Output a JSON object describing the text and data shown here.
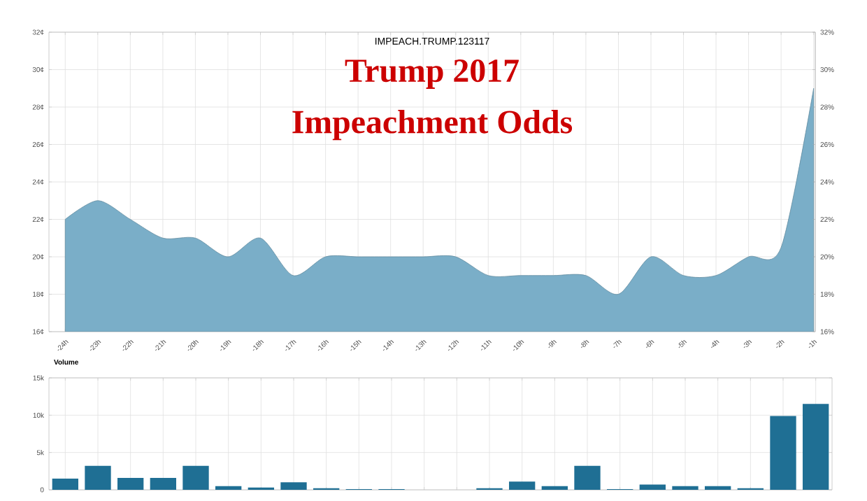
{
  "chart_data": [
    {
      "type": "area",
      "title": "IMPEACH.TRUMP.123117",
      "annotations": [
        "Trump 2017",
        "Impeachment Odds"
      ],
      "categories": [
        "-24h",
        "-23h",
        "-22h",
        "-21h",
        "-20h",
        "-19h",
        "-18h",
        "-17h",
        "-16h",
        "-15h",
        "-14h",
        "-13h",
        "-12h",
        "-11h",
        "-10h",
        "-9h",
        "-8h",
        "-7h",
        "-6h",
        "-5h",
        "-4h",
        "-3h",
        "-2h",
        "-1h"
      ],
      "values": [
        22,
        23,
        22,
        21,
        21,
        20,
        21,
        19,
        20,
        20,
        20,
        20,
        20,
        19,
        19,
        19,
        19,
        18,
        20,
        19,
        19,
        20,
        20.5,
        29
      ],
      "color": "#7aaec8",
      "ylim": [
        16,
        32
      ],
      "yticks": [
        {
          "value": 16,
          "label": "16¢"
        },
        {
          "value": 18,
          "label": "18¢"
        },
        {
          "value": 20,
          "label": "20¢"
        },
        {
          "value": 22,
          "label": "22¢"
        },
        {
          "value": 24,
          "label": "24¢"
        },
        {
          "value": 26,
          "label": "26¢"
        },
        {
          "value": 28,
          "label": "28¢"
        },
        {
          "value": 30,
          "label": "30¢"
        },
        {
          "value": 32,
          "label": "32¢"
        }
      ],
      "y2lim": [
        16,
        32
      ],
      "y2ticks": [
        {
          "value": 16,
          "label": "16%"
        },
        {
          "value": 18,
          "label": "18%"
        },
        {
          "value": 20,
          "label": "20%"
        },
        {
          "value": 22,
          "label": "22%"
        },
        {
          "value": 24,
          "label": "24%"
        },
        {
          "value": 26,
          "label": "26%"
        },
        {
          "value": 28,
          "label": "28%"
        },
        {
          "value": 30,
          "label": "30%"
        },
        {
          "value": 32,
          "label": "32%"
        }
      ],
      "grid": true
    },
    {
      "type": "bar",
      "title": "Volume",
      "categories": [
        null,
        null,
        null,
        null,
        null,
        null,
        null,
        null,
        null,
        null,
        null,
        null,
        null,
        null,
        null,
        null,
        null,
        null,
        null,
        null,
        null,
        null,
        null,
        null
      ],
      "values": [
        1500,
        3200,
        1600,
        1600,
        3200,
        500,
        300,
        1000,
        200,
        100,
        100,
        0,
        0,
        200,
        1100,
        500,
        3200,
        100,
        700,
        500,
        500,
        200,
        9900,
        11500
      ],
      "color": "#1f6f94",
      "ylim": [
        0,
        15000
      ],
      "yticks": [
        {
          "value": 0,
          "label": "0"
        },
        {
          "value": 5000,
          "label": "5k"
        },
        {
          "value": 10000,
          "label": "10k"
        },
        {
          "value": 15000,
          "label": "15k"
        }
      ],
      "tick_labels": "y",
      "grid": true
    }
  ]
}
